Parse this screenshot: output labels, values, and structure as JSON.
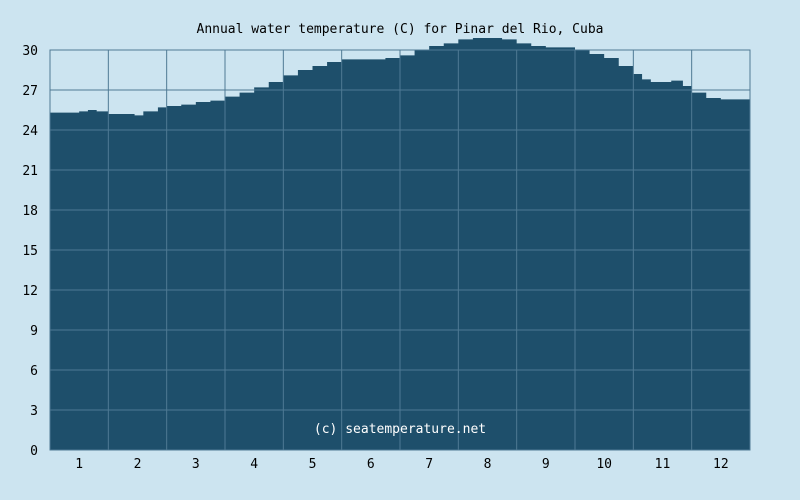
{
  "colors": {
    "background": "#cce4f0",
    "area_fill": "#1e4f6b",
    "grid": "#4f7a94",
    "frame": "#4f7a94"
  },
  "chart_data": {
    "type": "area",
    "title": "Annual water temperature (C) for Pinar del Rio, Cuba",
    "xlabel": "",
    "ylabel": "",
    "xlim": [
      0.5,
      12.5
    ],
    "ylim": [
      0,
      30
    ],
    "x_ticks": [
      "1",
      "2",
      "3",
      "4",
      "5",
      "6",
      "7",
      "8",
      "9",
      "10",
      "11",
      "12"
    ],
    "y_ticks": [
      "0",
      "3",
      "6",
      "9",
      "12",
      "15",
      "18",
      "21",
      "24",
      "27",
      "30"
    ],
    "grid": true,
    "legend": "none",
    "annotation": "(c) seatemperature.net",
    "series": [
      {
        "x": [
          0.5,
          0.75,
          1.0,
          1.15,
          1.3,
          1.5,
          1.75,
          1.95,
          2.1,
          2.35,
          2.5,
          2.75,
          3.0,
          3.25,
          3.5,
          3.75,
          4.0,
          4.25,
          4.5,
          4.75,
          5.0,
          5.25,
          5.5,
          5.75,
          6.0,
          6.25,
          6.5,
          6.75,
          7.0,
          7.25,
          7.5,
          7.75,
          8.0,
          8.25,
          8.5,
          8.75,
          9.0,
          9.25,
          9.5,
          9.75,
          10.0,
          10.25,
          10.5,
          10.65,
          10.8,
          11.0,
          11.15,
          11.35,
          11.5,
          11.75,
          12.0,
          12.25,
          12.5
        ],
        "values": [
          25.3,
          25.3,
          25.4,
          25.5,
          25.4,
          25.2,
          25.2,
          25.1,
          25.4,
          25.7,
          25.8,
          25.9,
          26.1,
          26.2,
          26.5,
          26.8,
          27.2,
          27.6,
          28.1,
          28.5,
          28.8,
          29.1,
          29.3,
          29.3,
          29.3,
          29.4,
          29.6,
          30.0,
          30.3,
          30.5,
          30.8,
          30.9,
          30.9,
          30.8,
          30.5,
          30.3,
          30.2,
          30.2,
          30.0,
          29.7,
          29.4,
          28.8,
          28.2,
          27.8,
          27.6,
          27.6,
          27.7,
          27.3,
          26.8,
          26.4,
          26.3,
          26.3,
          26.1
        ]
      }
    ]
  }
}
